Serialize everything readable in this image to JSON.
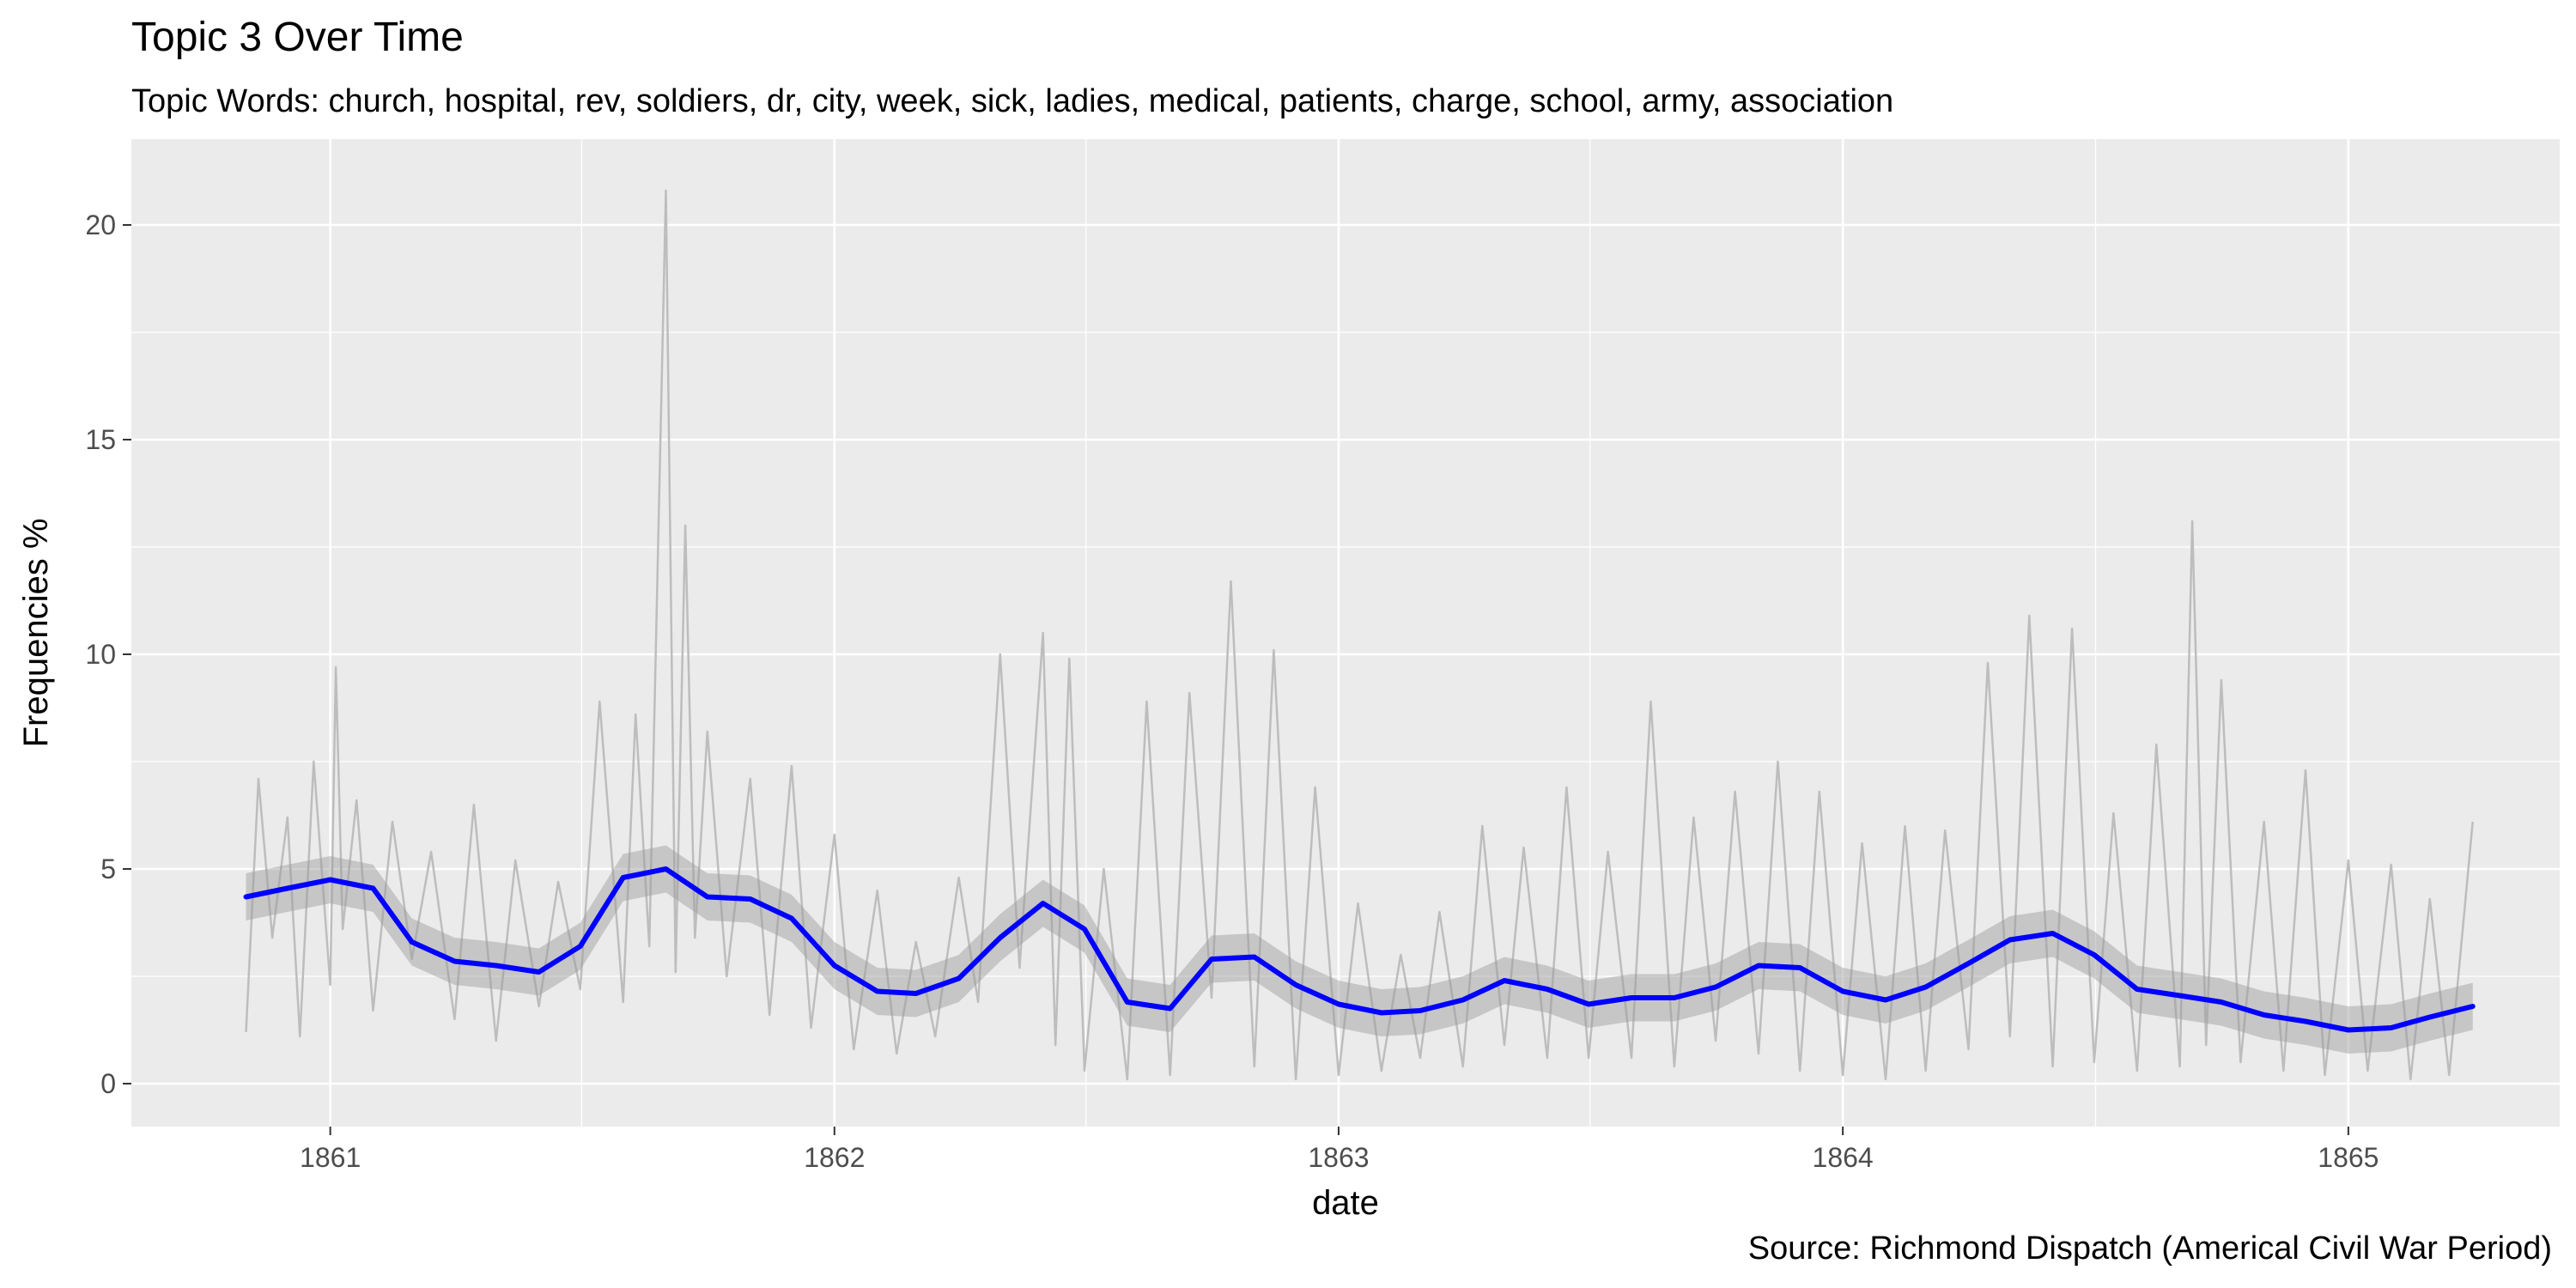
{
  "chart_data": {
    "type": "line",
    "title": "Topic 3 Over Time",
    "subtitle": "Topic Words: church, hospital, rev, soldiers, dr, city, week, sick, ladies, medical, patients, charge, school, army, association",
    "caption": "Source: Richmond Dispatch (Americal Civil War Period)",
    "xlabel": "date",
    "ylabel": "Frequencies %",
    "xlim": [
      "1860-08-10",
      "1865-06-03"
    ],
    "ylim": [
      -1,
      22
    ],
    "x_ticks": [
      "1861",
      "1862",
      "1863",
      "1864",
      "1865"
    ],
    "y_ticks": [
      0,
      5,
      10,
      15,
      20
    ],
    "grid": true,
    "panel_background": "#ebebeb",
    "series": [
      {
        "role": "raw daily frequencies",
        "color": "#bdbdbd",
        "x": [
          "1860-11-01",
          "1860-11-10",
          "1860-11-20",
          "1860-12-01",
          "1860-12-10",
          "1860-12-20",
          "1861-01-01",
          "1861-01-05",
          "1861-01-10",
          "1861-01-20",
          "1861-02-01",
          "1861-02-15",
          "1861-03-01",
          "1861-03-15",
          "1861-04-01",
          "1861-04-15",
          "1861-05-01",
          "1861-05-15",
          "1861-06-01",
          "1861-06-15",
          "1861-07-01",
          "1861-07-15",
          "1861-08-01",
          "1861-08-10",
          "1861-08-20",
          "1861-09-01",
          "1861-09-08",
          "1861-09-15",
          "1861-09-22",
          "1861-10-01",
          "1861-10-15",
          "1861-11-01",
          "1861-11-15",
          "1861-12-01",
          "1861-12-15",
          "1862-01-01",
          "1862-01-15",
          "1862-02-01",
          "1862-02-15",
          "1862-03-01",
          "1862-03-15",
          "1862-04-01",
          "1862-04-15",
          "1862-05-01",
          "1862-05-15",
          "1862-06-01",
          "1862-06-10",
          "1862-06-20",
          "1862-07-01",
          "1862-07-15",
          "1862-08-01",
          "1862-08-15",
          "1862-09-01",
          "1862-09-15",
          "1862-10-01",
          "1862-10-15",
          "1862-11-01",
          "1862-11-15",
          "1862-12-01",
          "1862-12-15",
          "1863-01-01",
          "1863-01-15",
          "1863-02-01",
          "1863-02-15",
          "1863-03-01",
          "1863-03-15",
          "1863-04-01",
          "1863-04-15",
          "1863-05-01",
          "1863-05-15",
          "1863-06-01",
          "1863-06-15",
          "1863-07-01",
          "1863-07-15",
          "1863-08-01",
          "1863-08-15",
          "1863-09-01",
          "1863-09-15",
          "1863-10-01",
          "1863-10-15",
          "1863-11-01",
          "1863-11-15",
          "1863-12-01",
          "1863-12-15",
          "1864-01-01",
          "1864-01-15",
          "1864-02-01",
          "1864-02-15",
          "1864-03-01",
          "1864-03-15",
          "1864-04-01",
          "1864-04-15",
          "1864-05-01",
          "1864-05-15",
          "1864-06-01",
          "1864-06-15",
          "1864-07-01",
          "1864-07-15",
          "1864-08-01",
          "1864-08-15",
          "1864-09-01",
          "1864-09-10",
          "1864-09-20",
          "1864-10-01",
          "1864-10-15",
          "1864-11-01",
          "1864-11-15",
          "1864-12-01",
          "1864-12-15",
          "1865-01-01",
          "1865-01-15",
          "1865-02-01",
          "1865-02-15",
          "1865-03-01",
          "1865-03-15",
          "1865-04-01"
        ],
        "y": [
          1.2,
          7.1,
          3.4,
          6.2,
          1.1,
          7.5,
          2.3,
          9.7,
          3.6,
          6.6,
          1.7,
          6.1,
          2.9,
          5.4,
          1.5,
          6.5,
          1.0,
          5.2,
          1.8,
          4.7,
          2.2,
          8.9,
          1.9,
          8.6,
          3.2,
          20.8,
          2.6,
          13.0,
          3.4,
          8.2,
          2.5,
          7.1,
          1.6,
          7.4,
          1.3,
          5.8,
          0.8,
          4.5,
          0.7,
          3.3,
          1.1,
          4.8,
          1.9,
          10.0,
          2.7,
          10.5,
          0.9,
          9.9,
          0.3,
          5.0,
          0.1,
          8.9,
          0.2,
          9.1,
          2.0,
          11.7,
          0.4,
          10.1,
          0.1,
          6.9,
          0.2,
          4.2,
          0.3,
          3.0,
          0.6,
          4.0,
          0.4,
          6.0,
          0.9,
          5.5,
          0.6,
          6.9,
          0.6,
          5.4,
          0.6,
          8.9,
          0.4,
          6.2,
          1.0,
          6.8,
          0.7,
          7.5,
          0.3,
          6.8,
          0.2,
          5.6,
          0.1,
          6.0,
          0.3,
          5.9,
          0.8,
          9.8,
          1.1,
          10.9,
          0.4,
          10.6,
          0.5,
          6.3,
          0.3,
          7.9,
          0.4,
          13.1,
          0.9,
          9.4,
          0.5,
          6.1,
          0.3,
          7.3,
          0.2,
          5.2,
          0.3,
          5.1,
          0.1,
          4.3,
          0.2,
          6.1
        ]
      },
      {
        "role": "smoothed trend",
        "color": "#0000ff",
        "band_color": "#999999",
        "x": [
          "1860-11-01",
          "1860-12-01",
          "1861-01-01",
          "1861-02-01",
          "1861-03-01",
          "1861-04-01",
          "1861-05-01",
          "1861-06-01",
          "1861-07-01",
          "1861-08-01",
          "1861-09-01",
          "1861-10-01",
          "1861-11-01",
          "1861-12-01",
          "1862-01-01",
          "1862-02-01",
          "1862-03-01",
          "1862-04-01",
          "1862-05-01",
          "1862-06-01",
          "1862-07-01",
          "1862-08-01",
          "1862-09-01",
          "1862-10-01",
          "1862-11-01",
          "1862-12-01",
          "1863-01-01",
          "1863-02-01",
          "1863-03-01",
          "1863-04-01",
          "1863-05-01",
          "1863-06-01",
          "1863-07-01",
          "1863-08-01",
          "1863-09-01",
          "1863-10-01",
          "1863-11-01",
          "1863-12-01",
          "1864-01-01",
          "1864-02-01",
          "1864-03-01",
          "1864-04-01",
          "1864-05-01",
          "1864-06-01",
          "1864-07-01",
          "1864-08-01",
          "1864-09-01",
          "1864-10-01",
          "1864-11-01",
          "1864-12-01",
          "1865-01-01",
          "1865-02-01",
          "1865-03-01",
          "1865-04-01"
        ],
        "y": [
          4.35,
          4.55,
          4.75,
          4.55,
          3.3,
          2.85,
          2.75,
          2.6,
          3.2,
          4.8,
          5.0,
          4.35,
          4.3,
          3.85,
          2.75,
          2.15,
          2.1,
          2.45,
          3.4,
          4.2,
          3.6,
          1.9,
          1.75,
          2.9,
          2.95,
          2.3,
          1.85,
          1.65,
          1.7,
          1.95,
          2.4,
          2.2,
          1.85,
          2.0,
          2.0,
          2.25,
          2.75,
          2.7,
          2.15,
          1.95,
          2.25,
          2.8,
          3.35,
          3.5,
          3.0,
          2.2,
          2.05,
          1.9,
          1.6,
          1.45,
          1.25,
          1.3,
          1.55,
          1.8
        ],
        "band_halfwidth": 0.55
      }
    ]
  }
}
